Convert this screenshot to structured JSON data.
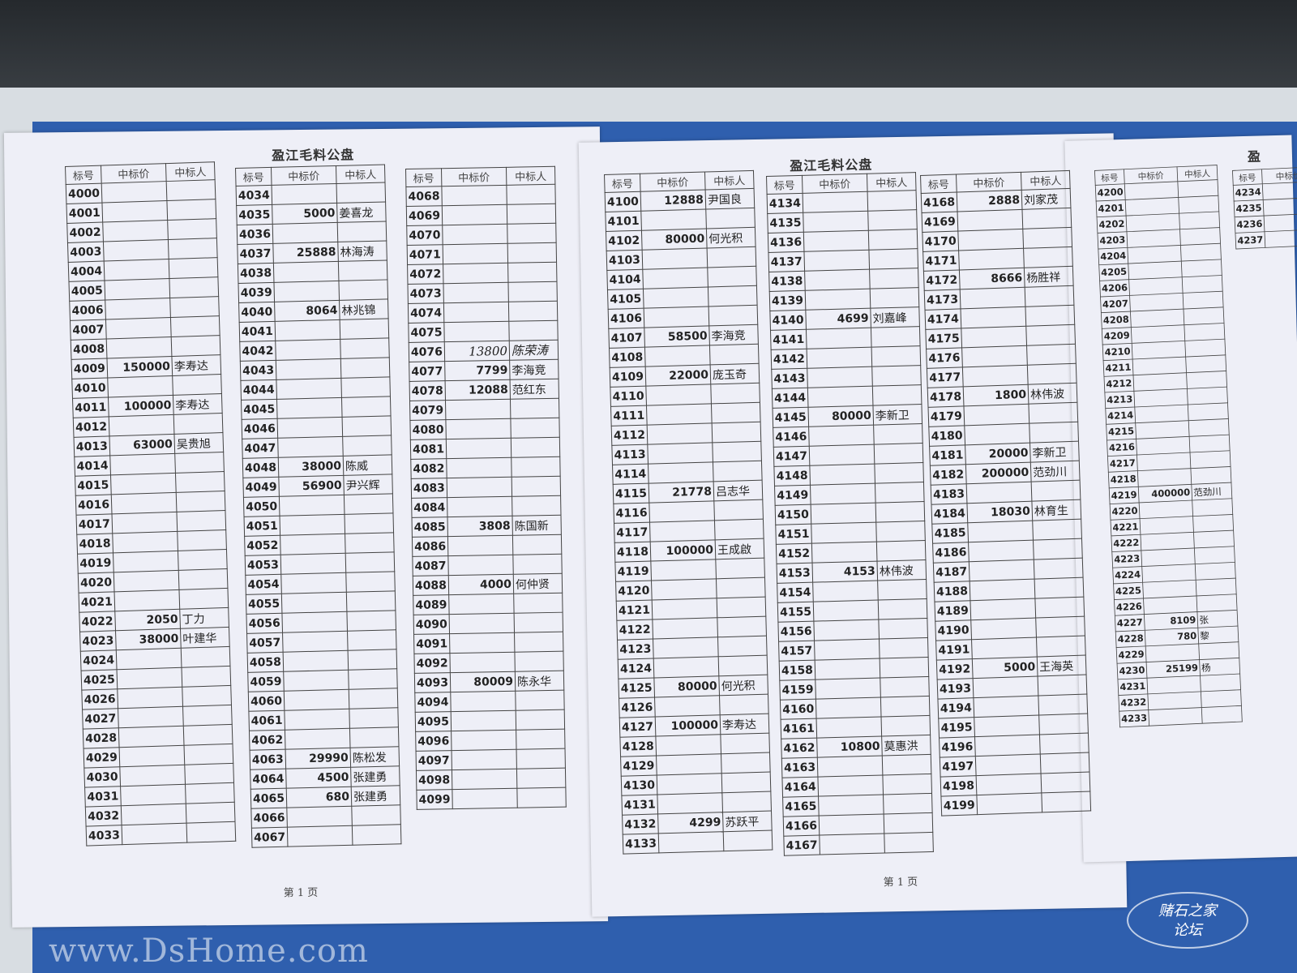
{
  "pages": [
    {
      "title": "盈江毛料公盘",
      "footer": "第 1 页"
    },
    {
      "title": "盈江毛料公盘",
      "footer": "第 1 页"
    },
    {
      "title": "盈",
      "footer": ""
    }
  ],
  "headers": [
    "标号",
    "中标价",
    "中标人"
  ],
  "tables": [
    {
      "start": 4000,
      "end": 4033,
      "entries": {
        "4009": [
          "150000",
          "李寿达"
        ],
        "4011": [
          "100000",
          "李寿达"
        ],
        "4013": [
          "63000",
          "吴贵旭"
        ],
        "4022": [
          "2050",
          "丁力"
        ],
        "4023": [
          "38000",
          "叶建华"
        ]
      }
    },
    {
      "start": 4034,
      "end": 4067,
      "entries": {
        "4035": [
          "5000",
          "姜喜龙"
        ],
        "4037": [
          "25888",
          "林海涛"
        ],
        "4040": [
          "8064",
          "林兆锦"
        ],
        "4048": [
          "38000",
          "陈威"
        ],
        "4049": [
          "56900",
          "尹兴辉"
        ],
        "4063": [
          "29990",
          "陈松发"
        ],
        "4064": [
          "4500",
          "张建勇"
        ],
        "4065": [
          "680",
          "张建勇"
        ]
      }
    },
    {
      "start": 4068,
      "end": 4099,
      "handwritten": [
        "4076"
      ],
      "entries": {
        "4076": [
          "13800",
          "陈荣涛"
        ],
        "4077": [
          "7799",
          "李海竞"
        ],
        "4078": [
          "12088",
          "范红东"
        ],
        "4085": [
          "3808",
          "陈国新"
        ],
        "4088": [
          "4000",
          "何仲贤"
        ],
        "4093": [
          "80009",
          "陈永华"
        ]
      }
    },
    {
      "start": 4100,
      "end": 4133,
      "entries": {
        "4100": [
          "12888",
          "尹国良"
        ],
        "4102": [
          "80000",
          "何光积"
        ],
        "4107": [
          "58500",
          "李海竞"
        ],
        "4109": [
          "22000",
          "庞玉奇"
        ],
        "4115": [
          "21778",
          "吕志华"
        ],
        "4118": [
          "100000",
          "王成啟"
        ],
        "4125": [
          "80000",
          "何光积"
        ],
        "4127": [
          "100000",
          "李寿达"
        ],
        "4132": [
          "4299",
          "苏跃平"
        ]
      }
    },
    {
      "start": 4134,
      "end": 4167,
      "entries": {
        "4140": [
          "4699",
          "刘嘉峰"
        ],
        "4145": [
          "80000",
          "李新卫"
        ],
        "4153": [
          "4153",
          "林伟波"
        ],
        "4162": [
          "10800",
          "莫惠洪"
        ]
      }
    },
    {
      "start": 4168,
      "end": 4199,
      "entries": {
        "4168": [
          "2888",
          "刘家茂"
        ],
        "4172": [
          "8666",
          "杨胜祥"
        ],
        "4178": [
          "1800",
          "林伟波"
        ],
        "4181": [
          "20000",
          "李新卫"
        ],
        "4182": [
          "200000",
          "范劲川"
        ],
        "4184": [
          "18030",
          "林育生"
        ],
        "4192": [
          "5000",
          "王海英"
        ]
      }
    },
    {
      "start": 4200,
      "end": 4233,
      "entries": {
        "4219": [
          "400000",
          "范劲川"
        ],
        "4227": [
          "8109",
          "张"
        ],
        "4228": [
          "780",
          "黎"
        ],
        "4230": [
          "25199",
          "杨"
        ]
      }
    },
    {
      "start": 4234,
      "end": 4237,
      "entries": {}
    }
  ],
  "watermark": "www.DsHome.com",
  "logo": {
    "line1": "赌石之家",
    "line2": "论坛"
  }
}
